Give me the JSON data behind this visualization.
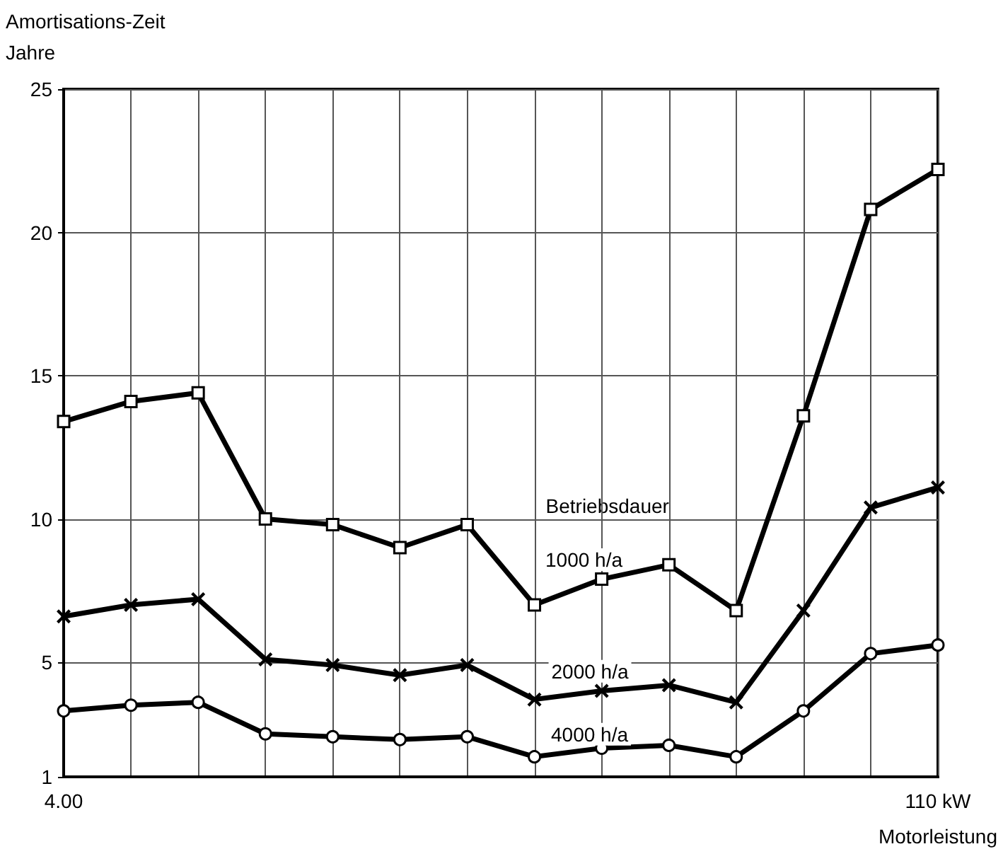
{
  "chart_data": {
    "type": "line",
    "ylabel": "Amortisations-Zeit\nJahre",
    "xlabel": "Motorleistung",
    "categories": [
      "4.00",
      null,
      null,
      null,
      null,
      null,
      null,
      null,
      null,
      null,
      null,
      null,
      null,
      "110 kW"
    ],
    "series": [
      {
        "name": "1000 h/a",
        "color": "#000000",
        "marker": "square",
        "values": [
          13.4,
          14.1,
          14.4,
          10.0,
          9.8,
          9.0,
          9.8,
          7.0,
          7.9,
          8.4,
          6.8,
          13.6,
          20.8,
          22.2
        ]
      },
      {
        "name": "2000 h/a",
        "color": "#000000",
        "marker": "cross",
        "values": [
          6.6,
          7.0,
          7.2,
          5.1,
          4.9,
          4.55,
          4.9,
          3.7,
          4.0,
          4.2,
          3.6,
          6.8,
          10.4,
          11.1
        ]
      },
      {
        "name": "4000 h/a",
        "color": "#000000",
        "marker": "circle",
        "values": [
          3.3,
          3.5,
          3.6,
          2.5,
          2.4,
          2.3,
          2.4,
          1.7,
          2.0,
          2.1,
          1.7,
          3.3,
          5.3,
          5.6
        ]
      }
    ],
    "annotations": [
      "Betriebsdauer"
    ],
    "ylim": [
      1,
      25
    ],
    "yticks": [
      1,
      5,
      10,
      15,
      20,
      25
    ],
    "grid": true,
    "legend": false,
    "line_style": "solid"
  }
}
